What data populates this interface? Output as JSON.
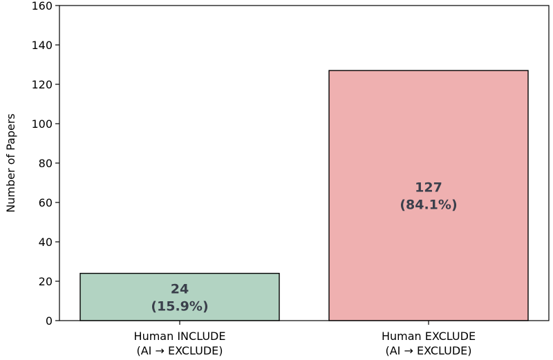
{
  "chart_data": {
    "type": "bar",
    "categories": [
      [
        "Human INCLUDE",
        "(AI → EXCLUDE)"
      ],
      [
        "Human EXCLUDE",
        "(AI → EXCLUDE)"
      ]
    ],
    "values": [
      24,
      127
    ],
    "data_labels": [
      [
        "24",
        "(15.9%)"
      ],
      [
        "127",
        "(84.1%)"
      ]
    ],
    "colors": [
      "#b2d3c2",
      "#efb0b0"
    ],
    "edge_color": "#000000",
    "xlabel": "",
    "ylabel": "Number of Papers",
    "ylim": [
      0,
      160
    ],
    "yticks": [
      "0",
      "20",
      "40",
      "60",
      "80",
      "100",
      "120",
      "140",
      "160"
    ],
    "grid": false,
    "legend": "none"
  }
}
